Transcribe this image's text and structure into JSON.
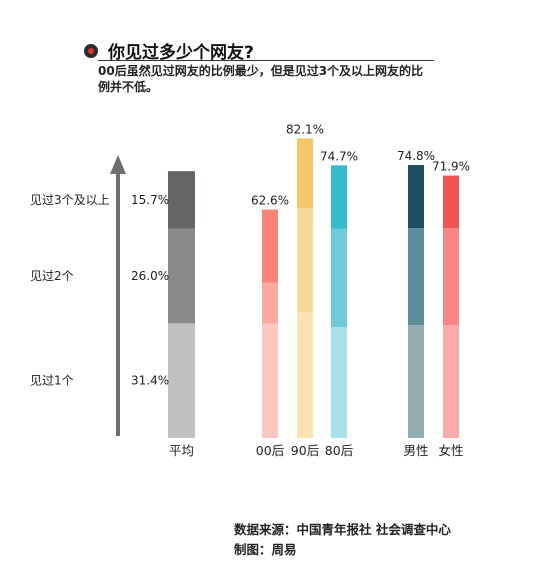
{
  "header": {
    "title": "你见过多少个网友?",
    "subtitle": "00后虽然见过网友的比例最少，但是见过3个及以上网友的比例并不低。"
  },
  "footer": {
    "source": "数据来源：中国青年报社 社会调查中心",
    "credit": "制图：周易"
  },
  "chart_data": {
    "type": "bar",
    "stacked": true,
    "y_arrow": true,
    "stack_levels": [
      "见过1个",
      "见过2个",
      "见过3个及以上"
    ],
    "average": {
      "label": "平均",
      "values": [
        31.4,
        26.0,
        15.7
      ],
      "value_labels": [
        "31.4%",
        "26.0%",
        "15.7%"
      ],
      "colors": [
        "#c2bfc0",
        "#8c898a",
        "#666466"
      ]
    },
    "groups": [
      {
        "name": "age",
        "bars": [
          {
            "label": "00后",
            "total": 62.6,
            "total_label": "62.6%",
            "values": [
              31.4,
              11.2,
              20.0
            ],
            "colors": [
              "#fcc7c0",
              "#fda9a0",
              "#f98478"
            ]
          },
          {
            "label": "90后",
            "total": 82.1,
            "total_label": "82.1%",
            "values": [
              34.5,
              28.5,
              19.1
            ],
            "colors": [
              "#fae3b0",
              "#f7d998",
              "#f6c66a"
            ]
          },
          {
            "label": "80后",
            "total": 74.7,
            "total_label": "74.7%",
            "values": [
              30.4,
              26.9,
              17.4
            ],
            "colors": [
              "#a9e1eb",
              "#6ecbdb",
              "#35bcd0"
            ]
          }
        ]
      },
      {
        "name": "gender",
        "bars": [
          {
            "label": "男性",
            "total": 74.8,
            "total_label": "74.8%",
            "values": [
              30.9,
              26.6,
              17.3
            ],
            "colors": [
              "#94acb4",
              "#5c8b99",
              "#1f4f60"
            ]
          },
          {
            "label": "女性",
            "total": 71.9,
            "total_label": "71.9%",
            "values": [
              30.9,
              26.6,
              14.4
            ],
            "colors": [
              "#fbaaaa",
              "#f98585",
              "#f25454"
            ]
          }
        ]
      }
    ]
  }
}
